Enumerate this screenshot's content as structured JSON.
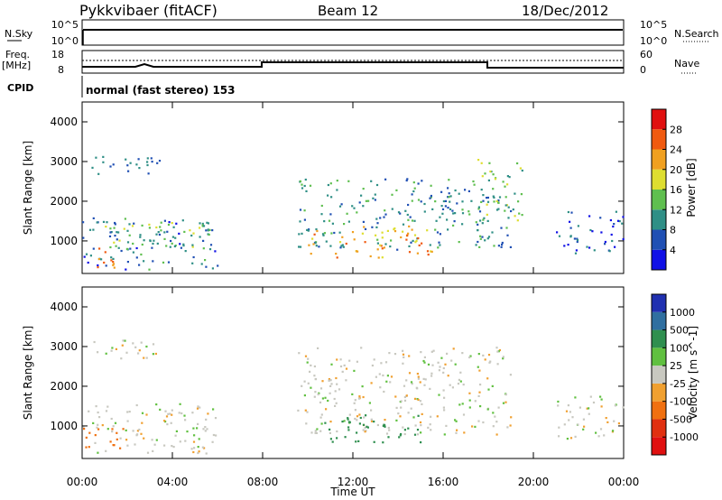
{
  "header": {
    "station": "Pykkvibaer (fitACF)",
    "beam": "Beam 12",
    "date": "18/Dec/2012"
  },
  "strip": {
    "nsky_label": "N.Sky",
    "nsky_top": "10^5",
    "nsky_bottom": "10^0",
    "nsearch_top": "10^5",
    "nsearch_bottom": "10^0",
    "nsearch_label": "N.Search",
    "freq_label_1": "Freq.",
    "freq_label_2": "[MHz]",
    "freq_top": "18",
    "freq_bottom": "8",
    "nave_top": "60",
    "nave_bottom": "0",
    "nave_label": "Nave",
    "cpid_label": "CPID",
    "cpid_text": "normal (fast stereo) 153"
  },
  "chart_data": [
    {
      "type": "heatmap",
      "title": "",
      "ylabel": "Slant Range [km]",
      "yticks": [
        "1000",
        "2000",
        "3000",
        "4000"
      ],
      "ylim": [
        180,
        4500
      ],
      "colorbar": {
        "label": "Power [dB]",
        "ticks": [
          "4",
          "8",
          "12",
          "16",
          "20",
          "24",
          "28"
        ],
        "colors": [
          "#1010e6",
          "#2050b4",
          "#2f8f86",
          "#5fbf4f",
          "#dede30",
          "#f0a020",
          "#f05a10",
          "#e01010"
        ]
      },
      "regions": [
        {
          "t0": 0.0,
          "t1": 6.0,
          "r0": 300,
          "r1": 1600,
          "level": 8
        },
        {
          "t0": 0.1,
          "t1": 1.5,
          "r0": 350,
          "r1": 900,
          "level": 24
        },
        {
          "t0": 1.0,
          "t1": 5.8,
          "r0": 800,
          "r1": 1500,
          "level": 14
        },
        {
          "t0": 0.0,
          "t1": 3.5,
          "r0": 2700,
          "r1": 3200,
          "level": 8
        },
        {
          "t0": 9.5,
          "t1": 19.0,
          "r0": 800,
          "r1": 2600,
          "level": 10
        },
        {
          "t0": 10.0,
          "t1": 15.5,
          "r0": 600,
          "r1": 1400,
          "level": 22
        },
        {
          "t0": 17.5,
          "t1": 19.5,
          "r0": 1500,
          "r1": 3100,
          "level": 14
        },
        {
          "t0": 21.0,
          "t1": 24.0,
          "r0": 700,
          "r1": 1800,
          "level": 6
        }
      ]
    },
    {
      "type": "heatmap",
      "title": "",
      "ylabel": "Slant Range [km]",
      "yticks": [
        "1000",
        "2000",
        "3000",
        "4000"
      ],
      "ylim": [
        180,
        4500
      ],
      "xlabel": "Time UT",
      "xticks": [
        "00:00",
        "04:00",
        "08:00",
        "12:00",
        "16:00",
        "20:00",
        "00:00"
      ],
      "xlim": [
        0,
        24
      ],
      "colorbar": {
        "label": "Velocity [m s^-1]",
        "ticks": [
          "1000",
          "500",
          "100",
          "25",
          "-25",
          "-100",
          "-500",
          "-1000"
        ],
        "colors": [
          "#2030b0",
          "#2f6fa0",
          "#2f8f4f",
          "#60c040",
          "#c8c8c0",
          "#f0a030",
          "#f07010",
          "#e03010",
          "#e01010"
        ]
      },
      "regions": [
        {
          "t0": 0.0,
          "t1": 6.0,
          "r0": 300,
          "r1": 1600,
          "vel": 0
        },
        {
          "t0": 0.0,
          "t1": 1.8,
          "r0": 350,
          "r1": 1000,
          "vel": -300
        },
        {
          "t0": 0.0,
          "t1": 3.5,
          "r0": 2700,
          "r1": 3200,
          "vel": 0
        },
        {
          "t0": 9.5,
          "t1": 19.0,
          "r0": 800,
          "r1": 3000,
          "vel": 0
        },
        {
          "t0": 10.5,
          "t1": 15.0,
          "r0": 600,
          "r1": 1300,
          "vel": 150
        },
        {
          "t0": 21.0,
          "t1": 24.0,
          "r0": 700,
          "r1": 1800,
          "vel": 0
        }
      ]
    }
  ]
}
